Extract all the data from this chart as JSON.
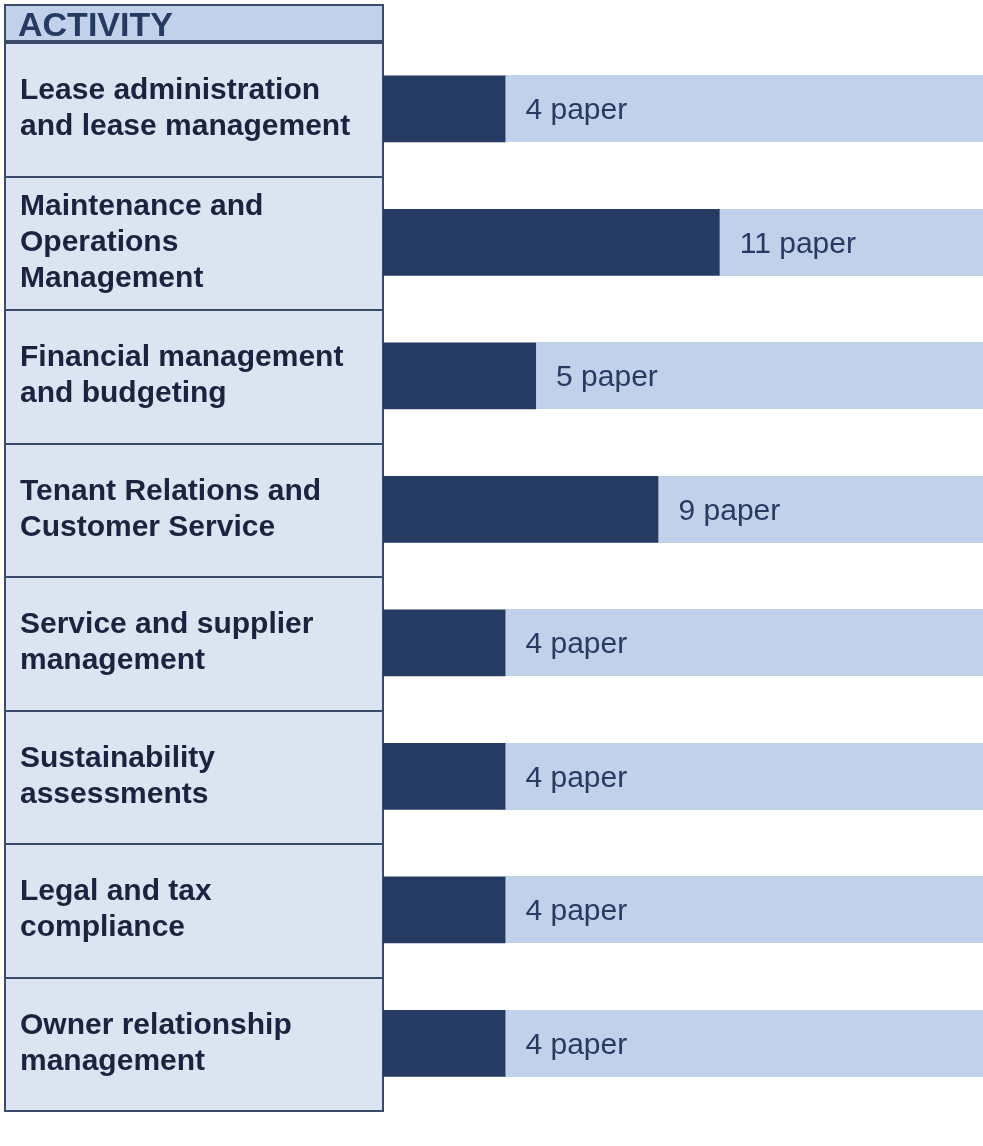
{
  "chart_data": {
    "type": "bar",
    "orientation": "horizontal",
    "annotations": [
      "ACTIVITY"
    ],
    "categories": [
      "Lease administration and lease management",
      "Maintenance and Operations Management",
      "Financial management and budgeting",
      "Tenant Relations and Customer Service",
      "Service and supplier management",
      "Sustainability assessments",
      "Legal and tax compliance",
      "Owner relationship management"
    ],
    "values": [
      4,
      11,
      5,
      9,
      4,
      4,
      4,
      4
    ],
    "value_labels": [
      "4 paper",
      "11 paper",
      "5 paper",
      "9 paper",
      "4 paper",
      "4 paper",
      "4 paper",
      "4 paper"
    ],
    "color": "#263b63",
    "xlim": [
      0,
      19.6
    ],
    "tick_labels": "y"
  }
}
